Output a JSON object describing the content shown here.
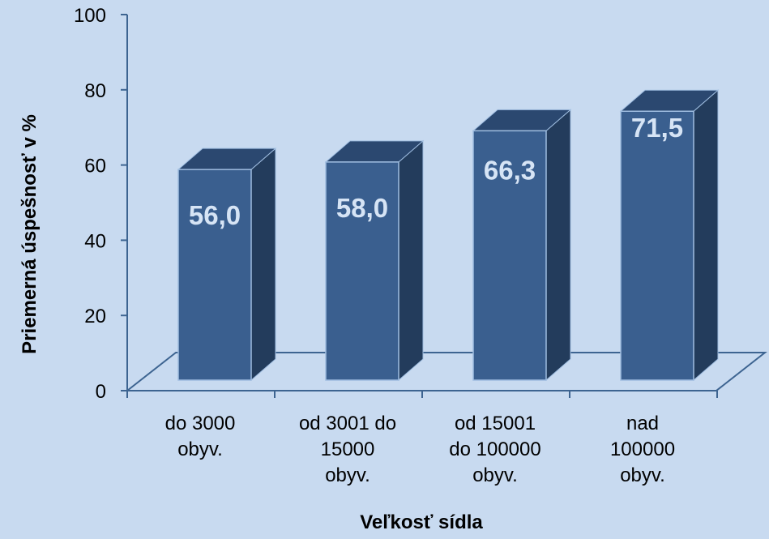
{
  "chart_data": {
    "type": "bar",
    "categories": [
      [
        "do 3000",
        "obyv."
      ],
      [
        "od 3001 do",
        "15000",
        "obyv."
      ],
      [
        "od 15001",
        "do 100000",
        "obyv."
      ],
      [
        "nad",
        "100000",
        "obyv."
      ]
    ],
    "values": [
      56.0,
      58.0,
      66.3,
      71.5
    ],
    "data_labels": [
      "56,0",
      "58,0",
      "66,3",
      "71,5"
    ],
    "ylabel": "Priemerná úspešnosť v %",
    "xlabel": "Veľkosť sídla",
    "ylim": [
      0,
      100
    ],
    "yticks": [
      "0",
      "20",
      "40",
      "60",
      "80",
      "100"
    ],
    "style": "3d-bar",
    "grid": false,
    "colors": {
      "background": "#c8daf0",
      "bar_front": "#3a5f8f",
      "bar_side": "#233c5c",
      "bar_top": "#2b4870",
      "bar_edge": "#9fbde0",
      "data_label": "#d6e4f5",
      "axis": "#3d6491"
    }
  }
}
